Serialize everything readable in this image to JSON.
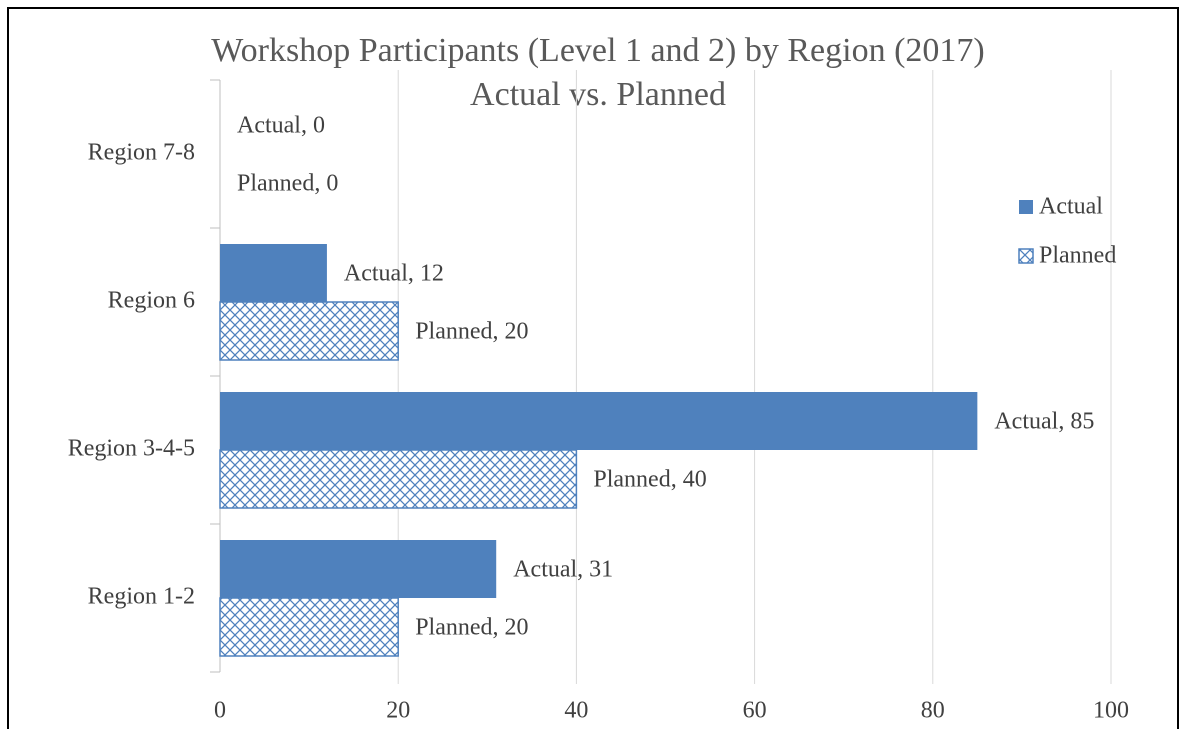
{
  "chart_data": {
    "type": "hbar",
    "title": "Workshop Participants (Level 1 and 2) by Region (2017)",
    "subtitle": "Actual vs. Planned",
    "categories": [
      "Region 1-2",
      "Region 3-4-5",
      "Region 6",
      "Region 7-8"
    ],
    "series": [
      {
        "name": "Actual",
        "color": "#4f81bd",
        "values": [
          31,
          85,
          12,
          0
        ],
        "value_labels": [
          "Actual, 31",
          "Actual, 85",
          "Actual, 12",
          "Actual, 0"
        ]
      },
      {
        "name": "Planned",
        "color": "#4f81bd",
        "pattern": "crosshatch",
        "values": [
          20,
          40,
          20,
          0
        ],
        "value_labels": [
          "Planned, 20",
          "Planned, 40",
          "Planned, 20",
          "Planned, 0"
        ]
      }
    ],
    "xlim": [
      0,
      100
    ],
    "xticks": [
      0,
      20,
      40,
      60,
      80,
      100
    ],
    "grid": true,
    "legend": "right"
  }
}
